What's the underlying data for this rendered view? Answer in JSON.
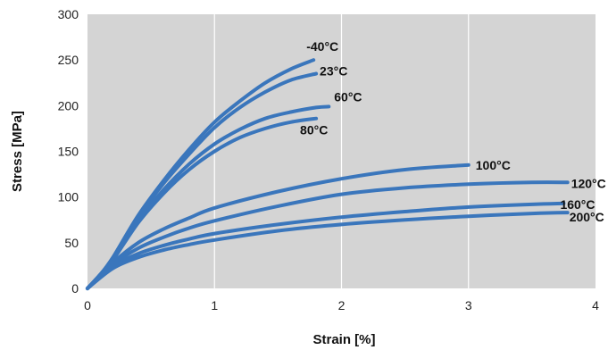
{
  "chart_data": {
    "type": "line",
    "title": "",
    "xlabel": "Strain [%]",
    "ylabel": "Stress [MPa]",
    "xlim": [
      0,
      4
    ],
    "ylim": [
      0,
      300
    ],
    "xticks": [
      0,
      1,
      2,
      3,
      4
    ],
    "yticks": [
      0,
      50,
      100,
      150,
      200,
      250,
      300
    ],
    "grid": "vertical",
    "line_color": "#3A76BC",
    "plot_background": "#D4D4D4",
    "series": [
      {
        "name": "-40°C",
        "x": [
          0,
          0.1,
          0.2,
          0.4,
          0.6,
          0.8,
          1.0,
          1.2,
          1.4,
          1.6,
          1.78
        ],
        "y": [
          0,
          15,
          34,
          80,
          118,
          152,
          182,
          205,
          225,
          240,
          250
        ]
      },
      {
        "name": "23°C",
        "x": [
          0,
          0.1,
          0.2,
          0.4,
          0.6,
          0.8,
          1.0,
          1.2,
          1.4,
          1.6,
          1.8
        ],
        "y": [
          0,
          15,
          33,
          78,
          115,
          147,
          176,
          198,
          215,
          228,
          235
        ]
      },
      {
        "name": "60°C",
        "x": [
          0,
          0.1,
          0.2,
          0.4,
          0.6,
          0.8,
          1.0,
          1.2,
          1.4,
          1.6,
          1.8,
          1.9
        ],
        "y": [
          0,
          15,
          32,
          74,
          108,
          136,
          158,
          174,
          186,
          193,
          198,
          199
        ]
      },
      {
        "name": "80°C",
        "x": [
          0,
          0.1,
          0.2,
          0.4,
          0.6,
          0.8,
          1.0,
          1.2,
          1.4,
          1.6,
          1.8
        ],
        "y": [
          0,
          15,
          31,
          72,
          104,
          130,
          150,
          165,
          175,
          182,
          186
        ]
      },
      {
        "name": "100°C",
        "x": [
          0,
          0.2,
          0.4,
          0.6,
          0.8,
          1.0,
          1.5,
          2.0,
          2.5,
          3.0
        ],
        "y": [
          0,
          28,
          50,
          65,
          77,
          88,
          106,
          120,
          130,
          135
        ]
      },
      {
        "name": "120°C",
        "x": [
          0,
          0.2,
          0.4,
          0.6,
          0.8,
          1.0,
          1.5,
          2.0,
          2.5,
          3.0,
          3.5,
          3.78
        ],
        "y": [
          0,
          26,
          44,
          56,
          66,
          74,
          90,
          103,
          110,
          114,
          116,
          116
        ]
      },
      {
        "name": "160°C",
        "x": [
          0,
          0.2,
          0.4,
          0.6,
          0.8,
          1.0,
          1.5,
          2.0,
          2.5,
          3.0,
          3.5,
          3.75
        ],
        "y": [
          0,
          24,
          38,
          47,
          54,
          60,
          70,
          78,
          84,
          89,
          92,
          93
        ]
      },
      {
        "name": "200°C",
        "x": [
          0,
          0.2,
          0.4,
          0.6,
          0.8,
          1.0,
          1.5,
          2.0,
          2.5,
          3.0,
          3.5,
          3.78
        ],
        "y": [
          0,
          22,
          34,
          42,
          48,
          53,
          63,
          70,
          75,
          79,
          82,
          83
        ]
      }
    ]
  }
}
